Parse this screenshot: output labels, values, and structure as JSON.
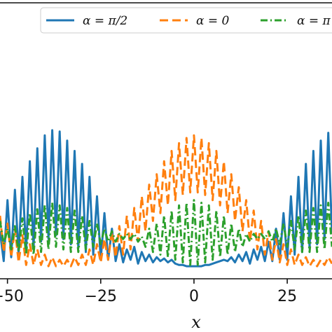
{
  "chart_data": {
    "type": "line",
    "xlabel": "x",
    "ylabel": "",
    "xlim": [
      -52,
      37
    ],
    "ylim": [
      0.0,
      1.2
    ],
    "x_ticks": [
      {
        "value": -50,
        "label": "−50"
      },
      {
        "value": -25,
        "label": "−25"
      },
      {
        "value": 0,
        "label": "0"
      },
      {
        "value": 25,
        "label": "25"
      }
    ],
    "legend": {
      "placement": "top",
      "entries": [
        {
          "label": "α = π/2",
          "series": "s1"
        },
        {
          "label": "α = 0",
          "series": "s2"
        },
        {
          "label": "α = π",
          "series": "s3"
        }
      ]
    },
    "colors": {
      "s1": "#1f77b4",
      "s2": "#ff7f0e",
      "s3": "#2ca02c"
    },
    "line_styles": {
      "s1": "solid",
      "s2": "dashed",
      "s3": "dashdot"
    },
    "series": [
      {
        "name": "α = π/2",
        "x": [
          -52,
          -51,
          -50,
          -49,
          -48,
          -47,
          -46,
          -45,
          -44,
          -43,
          -42,
          -41,
          -40,
          -39,
          -38,
          -37,
          -36,
          -35,
          -34,
          -33,
          -32,
          -31,
          -30,
          -29,
          -28,
          -27,
          -26,
          -25,
          -24,
          -23,
          -22,
          -21,
          -20,
          -19,
          -18,
          -17,
          -16,
          -15,
          -14,
          -13,
          -12,
          -11,
          -10,
          -9,
          -8,
          -7,
          -6,
          -5,
          -4,
          -3,
          -2,
          -1,
          0,
          1,
          2,
          3,
          4,
          5,
          6,
          7,
          8,
          9,
          10,
          11,
          12,
          13,
          14,
          15,
          16,
          17,
          18,
          19,
          20,
          21,
          22,
          23,
          24,
          25,
          26,
          27,
          28,
          29,
          30,
          31,
          32,
          33,
          34,
          35,
          36,
          37
        ],
        "y": [
          0.28,
          0.05,
          0.52,
          0.08,
          0.6,
          0.1,
          0.7,
          0.12,
          0.82,
          0.15,
          0.92,
          0.2,
          1.02,
          0.22,
          1.06,
          0.25,
          1.05,
          0.22,
          0.98,
          0.18,
          0.9,
          0.15,
          0.8,
          0.12,
          0.7,
          0.1,
          0.55,
          0.06,
          0.42,
          0.06,
          0.3,
          0.05,
          0.18,
          0.04,
          0.14,
          0.06,
          0.16,
          0.03,
          0.12,
          0.05,
          0.1,
          0.04,
          0.08,
          0.05,
          0.07,
          0.04,
          0.06,
          0.03,
          0.02,
          0.02,
          0.01,
          0.01,
          0.01,
          0.01,
          0.01,
          0.02,
          0.02,
          0.03,
          0.04,
          0.05,
          0.06,
          0.05,
          0.08,
          0.04,
          0.1,
          0.05,
          0.12,
          0.03,
          0.14,
          0.06,
          0.16,
          0.05,
          0.2,
          0.05,
          0.3,
          0.06,
          0.42,
          0.06,
          0.55,
          0.1,
          0.7,
          0.12,
          0.8,
          0.15,
          0.9,
          0.18,
          0.98,
          0.22,
          1.04,
          0.26
        ]
      },
      {
        "name": "α = 0",
        "x": [
          -52,
          -51,
          -50,
          -49,
          -48,
          -47,
          -46,
          -45,
          -44,
          -43,
          -42,
          -41,
          -40,
          -39,
          -38,
          -37,
          -36,
          -35,
          -34,
          -33,
          -32,
          -31,
          -30,
          -29,
          -28,
          -27,
          -26,
          -25,
          -24,
          -23,
          -22,
          -21,
          -20,
          -19,
          -18,
          -17,
          -16,
          -15,
          -14,
          -13,
          -12,
          -11,
          -10,
          -9,
          -8,
          -7,
          -6,
          -5,
          -4,
          -3,
          -2,
          -1,
          0,
          1,
          2,
          3,
          4,
          5,
          6,
          7,
          8,
          9,
          10,
          11,
          12,
          13,
          14,
          15,
          16,
          17,
          18,
          19,
          20,
          21,
          22,
          23,
          24,
          25,
          26,
          27,
          28,
          29,
          30,
          31,
          32,
          33,
          34,
          35,
          36,
          37
        ],
        "y": [
          0.4,
          0.12,
          0.34,
          0.08,
          0.3,
          0.04,
          0.25,
          0.02,
          0.18,
          0.02,
          0.14,
          0.02,
          0.1,
          0.01,
          0.08,
          0.01,
          0.06,
          0.01,
          0.06,
          0.01,
          0.08,
          0.02,
          0.1,
          0.02,
          0.14,
          0.02,
          0.18,
          0.04,
          0.22,
          0.06,
          0.28,
          0.08,
          0.32,
          0.1,
          0.4,
          0.14,
          0.46,
          0.2,
          0.55,
          0.28,
          0.64,
          0.36,
          0.72,
          0.42,
          0.82,
          0.48,
          0.9,
          0.52,
          0.96,
          0.56,
          1.0,
          0.58,
          1.02,
          0.58,
          1.0,
          0.56,
          0.96,
          0.52,
          0.9,
          0.48,
          0.82,
          0.42,
          0.72,
          0.36,
          0.62,
          0.28,
          0.52,
          0.2,
          0.44,
          0.14,
          0.36,
          0.1,
          0.28,
          0.06,
          0.22,
          0.04,
          0.18,
          0.02,
          0.14,
          0.02,
          0.1,
          0.02,
          0.08,
          0.01,
          0.06,
          0.01,
          0.06,
          0.02,
          0.08,
          0.03
        ]
      },
      {
        "name": "α = π",
        "x": [
          -52,
          -51,
          -50,
          -49,
          -48,
          -47,
          -46,
          -45,
          -44,
          -43,
          -42,
          -41,
          -40,
          -39,
          -38,
          -37,
          -36,
          -35,
          -34,
          -33,
          -32,
          -31,
          -30,
          -29,
          -28,
          -27,
          -26,
          -25,
          -24,
          -23,
          -22,
          -21,
          -20,
          -19,
          -18,
          -17,
          -16,
          -15,
          -14,
          -13,
          -12,
          -11,
          -10,
          -9,
          -8,
          -7,
          -6,
          -5,
          -4,
          -3,
          -2,
          -1,
          0,
          1,
          2,
          3,
          4,
          5,
          6,
          7,
          8,
          9,
          10,
          11,
          12,
          13,
          14,
          15,
          16,
          17,
          18,
          19,
          20,
          21,
          22,
          23,
          24,
          25,
          26,
          27,
          28,
          29,
          30,
          31,
          32,
          33,
          34,
          35,
          36,
          37
        ],
        "y": [
          0.36,
          0.18,
          0.3,
          0.14,
          0.32,
          0.12,
          0.38,
          0.1,
          0.42,
          0.1,
          0.45,
          0.12,
          0.48,
          0.14,
          0.5,
          0.16,
          0.48,
          0.14,
          0.46,
          0.12,
          0.44,
          0.12,
          0.4,
          0.14,
          0.36,
          0.16,
          0.34,
          0.18,
          0.3,
          0.2,
          0.28,
          0.2,
          0.26,
          0.22,
          0.26,
          0.22,
          0.26,
          0.2,
          0.24,
          0.16,
          0.3,
          0.12,
          0.34,
          0.1,
          0.4,
          0.08,
          0.44,
          0.06,
          0.48,
          0.04,
          0.5,
          0.02,
          0.52,
          0.02,
          0.5,
          0.04,
          0.48,
          0.06,
          0.44,
          0.08,
          0.4,
          0.1,
          0.34,
          0.12,
          0.3,
          0.16,
          0.26,
          0.2,
          0.26,
          0.22,
          0.26,
          0.22,
          0.28,
          0.2,
          0.3,
          0.18,
          0.34,
          0.16,
          0.36,
          0.14,
          0.4,
          0.12,
          0.44,
          0.12,
          0.46,
          0.12,
          0.48,
          0.14,
          0.5,
          0.16
        ]
      }
    ]
  }
}
